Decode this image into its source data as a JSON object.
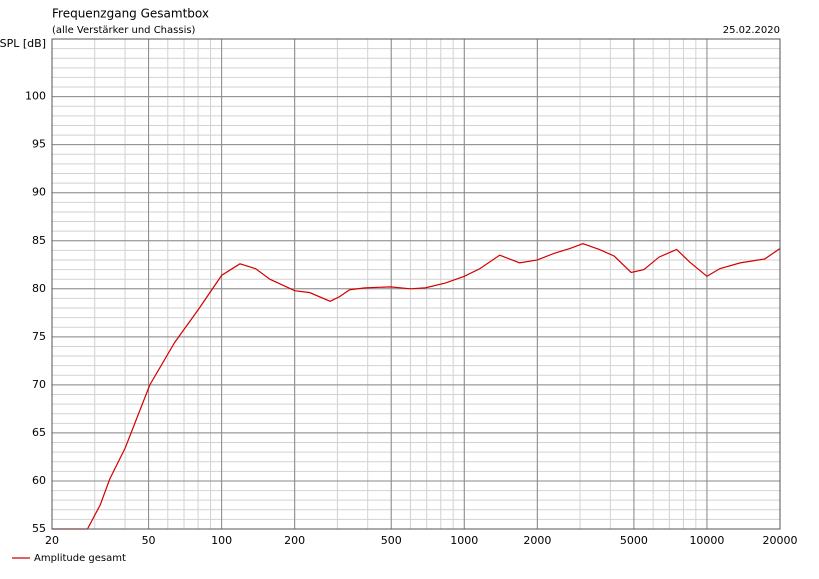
{
  "chart_data": {
    "type": "line",
    "title": "Frequenzgang Gesamtbox",
    "subtitle": "(alle Verstärker und Chassis)",
    "date": "25.02.2020",
    "y_label": "SPL [dB]",
    "x_scale": "log",
    "grid": true,
    "legend": "bottom-left",
    "xlim": [
      20,
      20000
    ],
    "xticks": [
      20,
      50,
      100,
      200,
      500,
      1000,
      2000,
      5000,
      10000,
      20000
    ],
    "ylim": [
      55,
      106
    ],
    "yticks": [
      55,
      60,
      65,
      70,
      75,
      80,
      85,
      90,
      95,
      100
    ],
    "x": [
      20,
      28,
      31.6,
      34.6,
      40,
      50.6,
      64,
      81,
      100,
      119,
      138,
      158,
      200,
      231,
      280,
      307,
      337,
      390,
      496,
      600,
      690,
      835,
      1000,
      1160,
      1400,
      1690,
      2000,
      2350,
      2730,
      3080,
      3600,
      4150,
      4870,
      5500,
      6350,
      7500,
      8480,
      10000,
      11300,
      13700,
      17300,
      20000
    ],
    "series": [
      {
        "name": "Amplitude gesamt",
        "color": "#d40000",
        "values": [
          55,
          55,
          57.5,
          60.2,
          63.4,
          70,
          74.4,
          78,
          81.4,
          82.6,
          82.1,
          81,
          79.8,
          79.6,
          78.7,
          79.2,
          79.9,
          80.1,
          80.2,
          80,
          80.1,
          80.6,
          81.3,
          82.1,
          83.5,
          82.7,
          83,
          83.7,
          84.2,
          84.7,
          84.1,
          83.4,
          81.7,
          82,
          83.3,
          84.1,
          82.8,
          81.3,
          82.1,
          82.7,
          83.1,
          84.2
        ]
      }
    ]
  }
}
